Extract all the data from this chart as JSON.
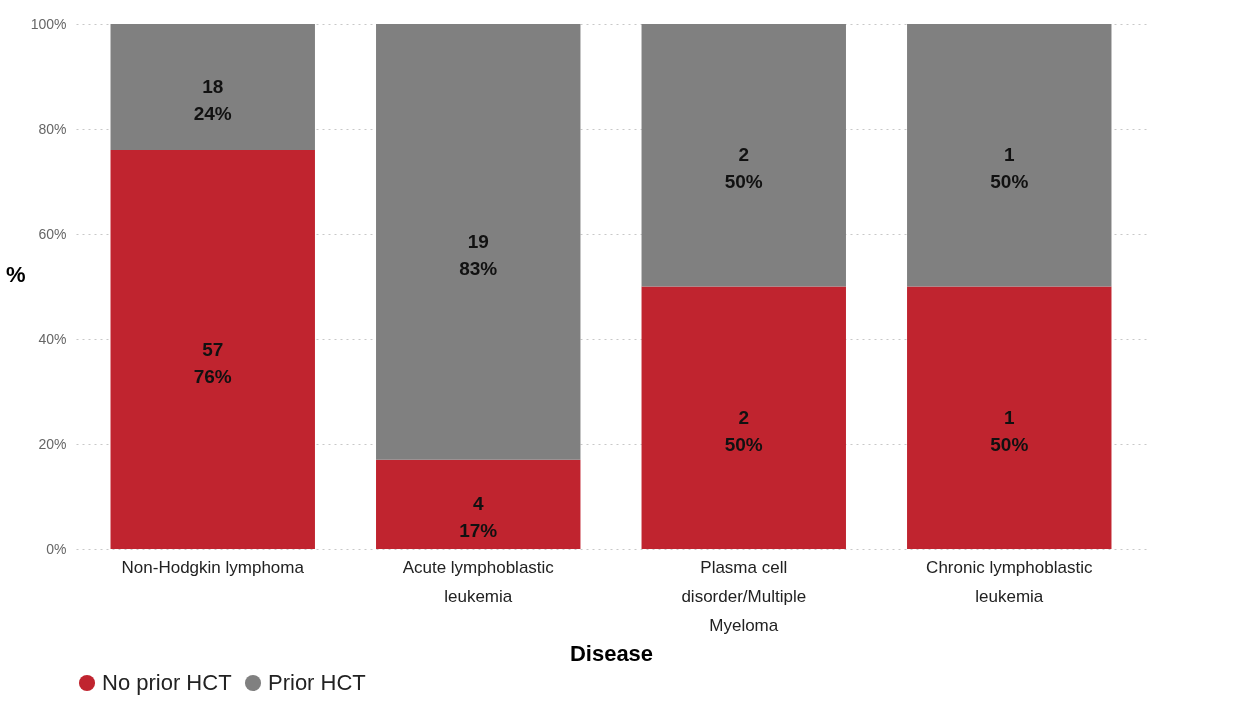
{
  "chart_data": {
    "type": "bar",
    "stacked": true,
    "xlabel": "Disease",
    "ylabel": "%",
    "categories": [
      "Non-Hodgkin lymphoma",
      "Acute lymphoblastic leukemia",
      "Plasma cell disorder/Multiple Myeloma",
      "Chronic lymphoblastic leukemia"
    ],
    "series": [
      {
        "name": "No prior HCT",
        "color": "#c0242f",
        "values": [
          76,
          17,
          50,
          50
        ],
        "value_labels": [
          "57\n76%",
          "4\n17%",
          "2\n50%",
          "1\n50%"
        ]
      },
      {
        "name": "Prior HCT",
        "color": "#808080",
        "values": [
          24,
          83,
          50,
          50
        ],
        "value_labels": [
          "18\n24%",
          "19\n83%",
          "2\n50%",
          "1\n50%"
        ]
      }
    ],
    "ylim": [
      0,
      100
    ],
    "yticks": [
      {
        "value": 0,
        "label": "0%"
      },
      {
        "value": 20,
        "label": "20%"
      },
      {
        "value": 40,
        "label": "40%"
      },
      {
        "value": 60,
        "label": "60%"
      },
      {
        "value": 80,
        "label": "80%"
      },
      {
        "value": 100,
        "label": "100%"
      }
    ],
    "grid": "y",
    "legend": "bottom"
  }
}
